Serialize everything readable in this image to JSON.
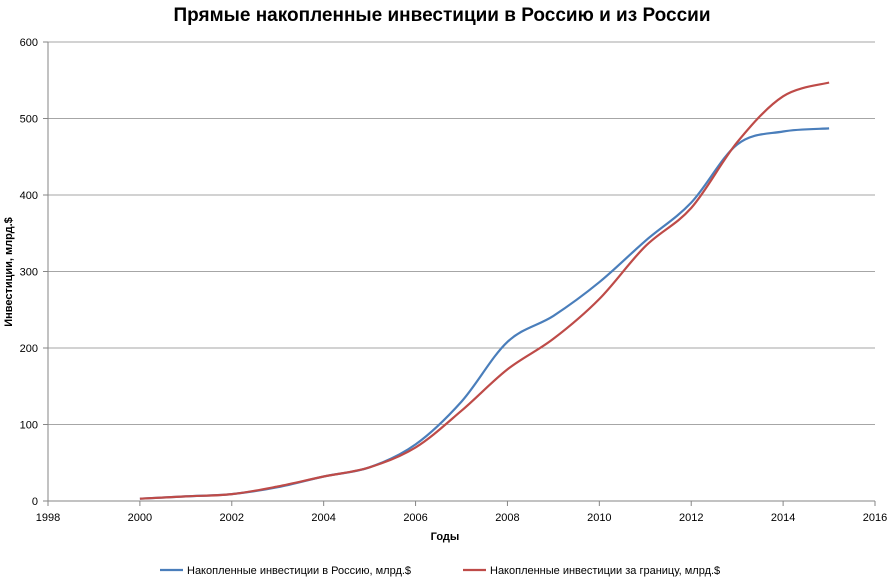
{
  "chart_data": {
    "type": "line",
    "title": "Прямые накопленные инвестиции в Россию и из России",
    "xlabel": "Годы",
    "ylabel": "Инвестиции, млрд.$",
    "xlim": [
      1998,
      2016
    ],
    "ylim": [
      0,
      600
    ],
    "xticks": [
      "1998",
      "2000",
      "2002",
      "2004",
      "2006",
      "2008",
      "2010",
      "2012",
      "2014",
      "2016"
    ],
    "yticks": [
      "0",
      "100",
      "200",
      "300",
      "400",
      "500",
      "600"
    ],
    "grid": true,
    "legend_position": "bottom",
    "x": [
      2000,
      2001,
      2002,
      2003,
      2004,
      2005,
      2006,
      2007,
      2008,
      2009,
      2010,
      2011,
      2012,
      2013,
      2014,
      2015
    ],
    "series": [
      {
        "name": "Накопленные инвестиции в Россию, млрд.$",
        "color": "#4a7ebb",
        "values": [
          3,
          6,
          9,
          18,
          32,
          44,
          74,
          130,
          208,
          242,
          286,
          340,
          390,
          466,
          483,
          487
        ]
      },
      {
        "name": "Накопленные инвестиции за границу, млрд.$",
        "color": "#be4b48",
        "values": [
          3,
          6,
          9,
          19,
          32,
          44,
          70,
          118,
          172,
          212,
          264,
          333,
          383,
          469,
          529,
          547
        ]
      }
    ]
  }
}
